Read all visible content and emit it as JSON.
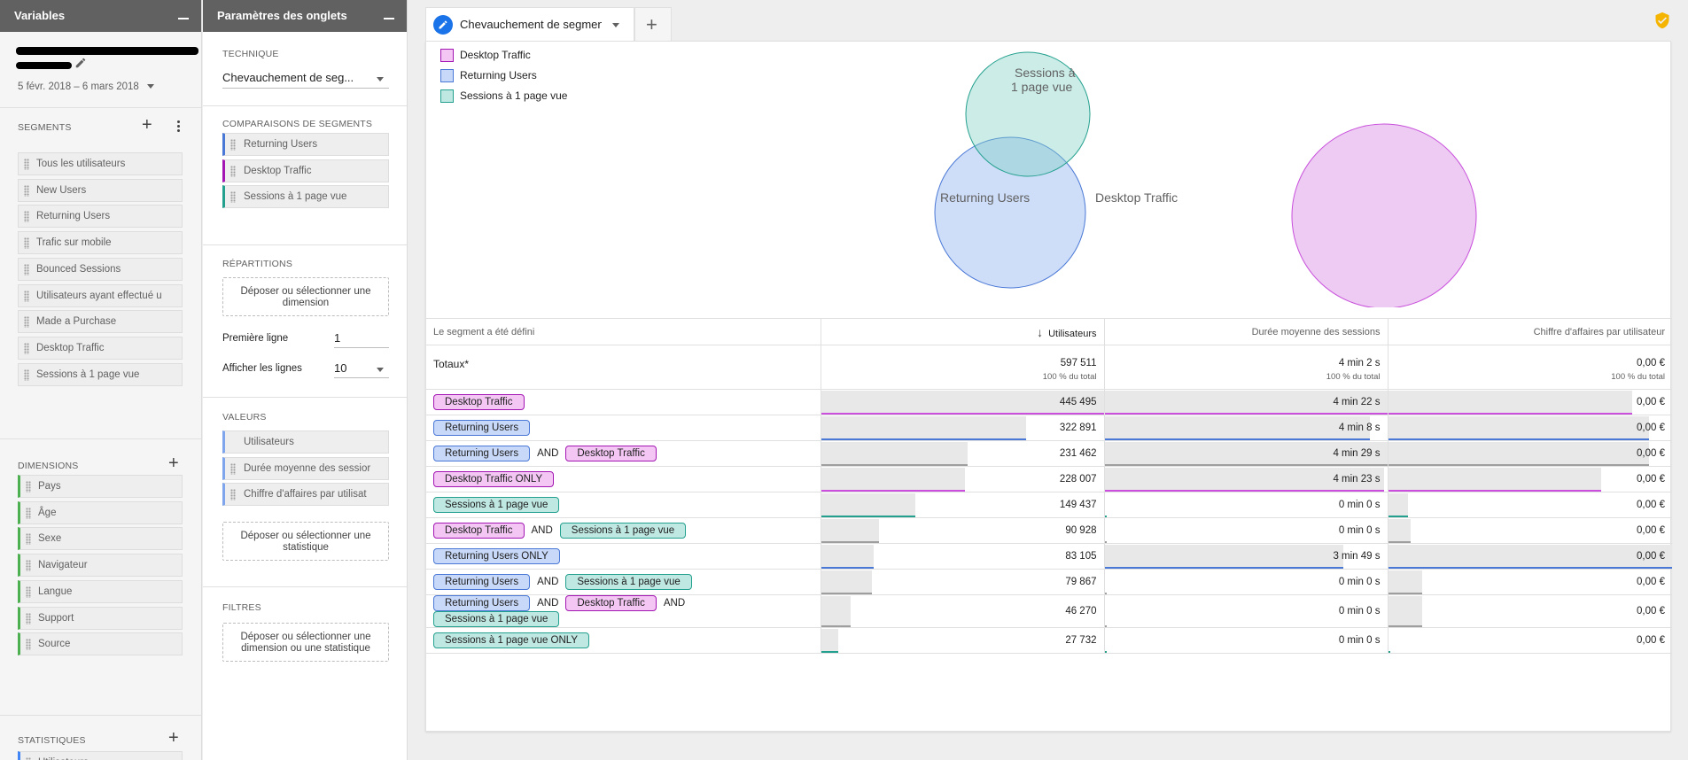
{
  "variables_panel": {
    "title": "Variables",
    "date_range": "5 févr. 2018 – 6 mars 2018",
    "segments_title": "SEGMENTS",
    "segments": [
      "Tous les utilisateurs",
      "New Users",
      "Returning Users",
      "Trafic sur mobile",
      "Bounced Sessions",
      "Utilisateurs ayant effectué u",
      "Made a Purchase",
      "Desktop Traffic",
      "Sessions à 1 page vue"
    ],
    "dimensions_title": "DIMENSIONS",
    "dimensions": [
      "Pays",
      "Âge",
      "Sexe",
      "Navigateur",
      "Langue",
      "Support",
      "Source"
    ],
    "metrics_title": "STATISTIQUES",
    "metrics": [
      "Utilisateurs"
    ]
  },
  "settings_panel": {
    "title": "Paramètres des onglets",
    "technique_title": "TECHNIQUE",
    "technique_value": "Chevauchement de seg...",
    "comparisons_title": "COMPARAISONS DE SEGMENTS",
    "comparisons": [
      "Returning Users",
      "Desktop Traffic",
      "Sessions à 1 page vue"
    ],
    "breakdowns_title": "RÉPARTITIONS",
    "breakdowns_drop": "Déposer ou sélectionner une dimension",
    "first_row_label": "Première ligne",
    "first_row_value": "1",
    "show_rows_label": "Afficher les lignes",
    "show_rows_value": "10",
    "values_title": "VALEURS",
    "values": [
      "Utilisateurs",
      "Durée moyenne des sessior",
      "Chiffre d'affaires par utilisat"
    ],
    "values_drop": "Déposer ou sélectionner une statistique",
    "filters_title": "FILTRES",
    "filters_drop": "Déposer ou sélectionner une dimension ou une statistique"
  },
  "tab": {
    "name": "Chevauchement de segmen"
  },
  "colors": {
    "desktop": "#c94fdc",
    "returning": "#4a78d6",
    "sessions": "#24a08e"
  },
  "legend": [
    "Desktop Traffic",
    "Returning Users",
    "Sessions à 1 page vue"
  ],
  "venn": {
    "label_returning": "Returning Users",
    "label_desktop": "Desktop Traffic",
    "label_sessions_1": "Sessions à",
    "label_sessions_2": "1 page vue"
  },
  "table": {
    "headers": [
      "Le segment a été défini",
      "Utilisateurs",
      "Durée moyenne des sessions",
      "Chiffre d'affaires par utilisateur"
    ],
    "totals": {
      "label": "Totaux*",
      "users": "597 511",
      "users_sub": "100 % du total",
      "duration": "4 min 2 s",
      "duration_sub": "100 % du total",
      "revenue": "0,00 €",
      "revenue_sub": "100 % du total"
    },
    "and_label": "AND",
    "rows": [
      {
        "tags": [
          {
            "t": "Desktop Traffic",
            "c": "d"
          }
        ],
        "users": "445 495",
        "duration": "4 min 22 s",
        "revenue": "0,00 €",
        "u": 1.0,
        "d": 1.0,
        "r": 0.86,
        "line": "d"
      },
      {
        "tags": [
          {
            "t": "Returning Users",
            "c": "r"
          }
        ],
        "users": "322 891",
        "duration": "4 min 8 s",
        "revenue": "0,00 €",
        "u": 0.725,
        "d": 0.94,
        "r": 0.92,
        "line": "r"
      },
      {
        "tags": [
          {
            "t": "Returning Users",
            "c": "r"
          },
          {
            "t": "Desktop Traffic",
            "c": "d"
          }
        ],
        "users": "231 462",
        "duration": "4 min 29 s",
        "revenue": "0,00 €",
        "u": 0.52,
        "d": 1.0,
        "r": 0.92,
        "line": "g"
      },
      {
        "tags": [
          {
            "t": "Desktop Traffic ONLY",
            "c": "d"
          }
        ],
        "users": "228 007",
        "duration": "4 min 23 s",
        "revenue": "0,00 €",
        "u": 0.51,
        "d": 0.99,
        "r": 0.75,
        "line": "d"
      },
      {
        "tags": [
          {
            "t": "Sessions à 1 page vue",
            "c": "s"
          }
        ],
        "users": "149 437",
        "duration": "0 min 0 s",
        "revenue": "0,00 €",
        "u": 0.335,
        "d": 0.0,
        "r": 0.07,
        "line": "s"
      },
      {
        "tags": [
          {
            "t": "Desktop Traffic",
            "c": "d"
          },
          {
            "t": "Sessions à 1 page vue",
            "c": "s"
          }
        ],
        "users": "90 928",
        "duration": "0 min 0 s",
        "revenue": "0,00 €",
        "u": 0.205,
        "d": 0.0,
        "r": 0.08,
        "line": "g"
      },
      {
        "tags": [
          {
            "t": "Returning Users ONLY",
            "c": "r"
          }
        ],
        "users": "83 105",
        "duration": "3 min 49 s",
        "revenue": "0,00 €",
        "u": 0.185,
        "d": 0.845,
        "r": 1.0,
        "line": "r"
      },
      {
        "tags": [
          {
            "t": "Returning Users",
            "c": "r"
          },
          {
            "t": "Sessions à 1 page vue",
            "c": "s"
          }
        ],
        "users": "79 867",
        "duration": "0 min 0 s",
        "revenue": "0,00 €",
        "u": 0.18,
        "d": 0.0,
        "r": 0.12,
        "line": "g"
      },
      {
        "tags": [
          {
            "t": "Returning Users",
            "c": "r"
          },
          {
            "t": "Desktop Traffic",
            "c": "d"
          },
          {
            "t": "Sessions à 1 page vue",
            "c": "s"
          }
        ],
        "users": "46 270",
        "duration": "0 min 0 s",
        "revenue": "0,00 €",
        "u": 0.105,
        "d": 0.0,
        "r": 0.12,
        "line": "g"
      },
      {
        "tags": [
          {
            "t": "Sessions à 1 page vue ONLY",
            "c": "s"
          }
        ],
        "users": "27 732",
        "duration": "0 min 0 s",
        "revenue": "0,00 €",
        "u": 0.062,
        "d": 0.0,
        "r": 0.0,
        "line": "s"
      }
    ]
  }
}
